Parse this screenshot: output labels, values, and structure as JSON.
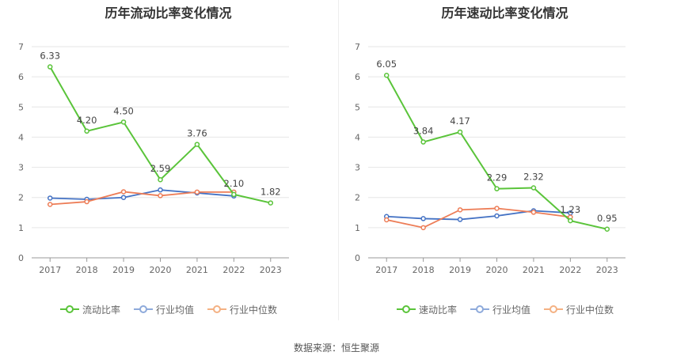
{
  "chart_data": [
    {
      "type": "line",
      "title": "历年流动比率变化情况",
      "categories": [
        "2017",
        "2018",
        "2019",
        "2020",
        "2021",
        "2022",
        "2023"
      ],
      "yticks": [
        "0",
        "1",
        "2",
        "3",
        "4",
        "5",
        "6",
        "7"
      ],
      "ylim": [
        0,
        7
      ],
      "series": [
        {
          "name": "流动比率",
          "color": "#5ac43a",
          "values": [
            6.33,
            4.2,
            4.5,
            2.59,
            3.76,
            2.1,
            1.82
          ],
          "labels": [
            "6.33",
            "4.20",
            "4.50",
            "2.59",
            "3.76",
            "2.10",
            "1.82"
          ]
        },
        {
          "name": "行业均值",
          "color": "#4472c4",
          "values": [
            1.98,
            1.94,
            2.0,
            2.25,
            2.15,
            2.05,
            null
          ]
        },
        {
          "name": "行业中位数",
          "color": "#ed7d57",
          "values": [
            1.77,
            1.86,
            2.19,
            2.06,
            2.18,
            2.18,
            null
          ]
        }
      ],
      "legend": [
        {
          "name": "流动比率",
          "color": "#5ac43a"
        },
        {
          "name": "行业均值",
          "color": "#8eaadb"
        },
        {
          "name": "行业中位数",
          "color": "#f4b183"
        }
      ]
    },
    {
      "type": "line",
      "title": "历年速动比率变化情况",
      "categories": [
        "2017",
        "2018",
        "2019",
        "2020",
        "2021",
        "2022",
        "2023"
      ],
      "yticks": [
        "0",
        "1",
        "2",
        "3",
        "4",
        "5",
        "6",
        "7"
      ],
      "ylim": [
        0,
        7
      ],
      "series": [
        {
          "name": "速动比率",
          "color": "#5ac43a",
          "values": [
            6.05,
            3.84,
            4.17,
            2.29,
            2.32,
            1.23,
            0.95
          ],
          "labels": [
            "6.05",
            "3.84",
            "4.17",
            "2.29",
            "2.32",
            "1.23",
            "0.95"
          ]
        },
        {
          "name": "行业均值",
          "color": "#4472c4",
          "values": [
            1.37,
            1.3,
            1.27,
            1.39,
            1.56,
            1.49,
            null
          ]
        },
        {
          "name": "行业中位数",
          "color": "#ed7d57",
          "values": [
            1.26,
            1.0,
            1.59,
            1.64,
            1.51,
            1.35,
            null
          ]
        }
      ],
      "legend": [
        {
          "name": "速动比率",
          "color": "#5ac43a"
        },
        {
          "name": "行业均值",
          "color": "#8eaadb"
        },
        {
          "name": "行业中位数",
          "color": "#f4b183"
        }
      ]
    }
  ],
  "source_label": "数据来源：",
  "source_name": "恒生聚源"
}
